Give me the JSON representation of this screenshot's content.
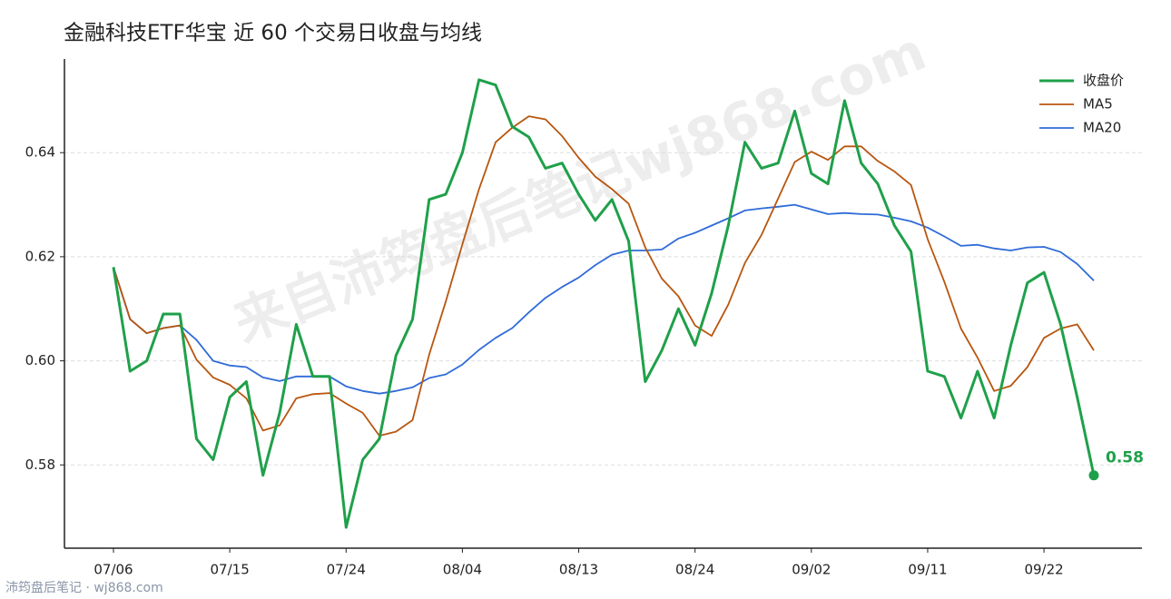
{
  "chart_data": {
    "type": "line",
    "title": "金融科技ETF华宝 近 60 个交易日收盘与均线",
    "watermark": "来自沛筠盘后笔记wj868.com",
    "footer": "沛筠盘后笔记 · wj868.com",
    "categories": [
      "07/06",
      null,
      null,
      null,
      null,
      null,
      null,
      "07/15",
      null,
      null,
      null,
      null,
      null,
      null,
      "07/24",
      null,
      null,
      null,
      null,
      null,
      null,
      "08/04",
      null,
      null,
      null,
      null,
      null,
      null,
      "08/13",
      null,
      null,
      null,
      null,
      null,
      null,
      "08/24",
      null,
      null,
      null,
      null,
      null,
      null,
      "09/02",
      null,
      null,
      null,
      null,
      null,
      null,
      "09/11",
      null,
      null,
      null,
      null,
      null,
      null,
      "09/22",
      null,
      null,
      null
    ],
    "ylim": [
      0.564,
      0.658
    ],
    "yticks": [
      0.58,
      {
        "value": 0.6,
        "label": "0.60"
      },
      0.62,
      0.64
    ],
    "grid": true,
    "legend": "upper right",
    "series": [
      {
        "name": "收盘价",
        "color": "#1fa04a",
        "values": [
          0.618,
          0.598,
          0.6,
          0.609,
          0.609,
          0.585,
          0.581,
          0.593,
          0.596,
          0.578,
          0.59,
          0.607,
          0.597,
          0.597,
          0.568,
          0.581,
          0.585,
          0.601,
          0.608,
          0.631,
          0.632,
          0.64,
          0.654,
          0.653,
          0.645,
          0.643,
          0.637,
          0.638,
          0.632,
          0.627,
          0.631,
          0.623,
          0.596,
          0.602,
          0.61,
          0.603,
          0.613,
          0.626,
          0.642,
          0.637,
          0.638,
          0.648,
          0.636,
          0.634,
          0.65,
          0.638,
          0.634,
          0.626,
          0.621,
          0.598,
          0.597,
          0.589,
          0.598,
          0.589,
          0.603,
          0.615,
          0.617,
          0.607,
          0.593,
          0.578
        ],
        "value_labels": [
          null,
          null,
          null,
          null,
          null,
          null,
          null,
          null,
          null,
          null,
          null,
          null,
          null,
          null,
          null,
          null,
          null,
          null,
          null,
          null,
          null,
          null,
          null,
          null,
          null,
          null,
          null,
          null,
          null,
          null,
          null,
          null,
          null,
          null,
          null,
          null,
          null,
          null,
          null,
          null,
          null,
          null,
          null,
          null,
          null,
          null,
          null,
          null,
          null,
          null,
          null,
          null,
          null,
          null,
          null,
          null,
          null,
          null,
          null,
          "0.58"
        ]
      },
      {
        "name": "MA5",
        "color": "#b8560f",
        "values": [
          0.618,
          0.608,
          0.6053,
          0.6063,
          0.6068,
          0.6002,
          0.5968,
          0.5954,
          0.5928,
          0.5866,
          0.5876,
          0.5928,
          0.5936,
          0.5938,
          0.5918,
          0.59,
          0.5856,
          0.5864,
          0.5886,
          0.6012,
          0.6114,
          0.6224,
          0.633,
          0.642,
          0.6448,
          0.647,
          0.6464,
          0.6432,
          0.639,
          0.6354,
          0.633,
          0.6302,
          0.6218,
          0.6158,
          0.6124,
          0.6068,
          0.6048,
          0.6108,
          0.6188,
          0.6242,
          0.6312,
          0.6382,
          0.6402,
          0.6386,
          0.6412,
          0.6412,
          0.6384,
          0.6364,
          0.6338,
          0.6234,
          0.6152,
          0.6062,
          0.6006,
          0.5942,
          0.5952,
          0.5988,
          0.6044,
          0.6062,
          0.607,
          0.602
        ]
      },
      {
        "name": "MA20",
        "color": "#2f6bd8",
        "values": [
          0.618,
          0.608,
          0.6053,
          0.6063,
          0.6068,
          0.604,
          0.6,
          0.5991,
          0.5988,
          0.5968,
          0.5961,
          0.597,
          0.597,
          0.597,
          0.5951,
          0.5942,
          0.5937,
          0.5942,
          0.5949,
          0.5967,
          0.5974,
          0.5993,
          0.6021,
          0.6044,
          0.6063,
          0.6093,
          0.6121,
          0.6142,
          0.616,
          0.6184,
          0.6204,
          0.6212,
          0.6212,
          0.6214,
          0.6235,
          0.6246,
          0.626,
          0.6274,
          0.6289,
          0.6293,
          0.6296,
          0.63,
          0.6291,
          0.6282,
          0.6284,
          0.6282,
          0.6281,
          0.6275,
          0.6268,
          0.6256,
          0.6239,
          0.6221,
          0.6223,
          0.6216,
          0.6212,
          0.6218,
          0.6219,
          0.6209,
          0.6186,
          0.6154
        ]
      }
    ]
  }
}
